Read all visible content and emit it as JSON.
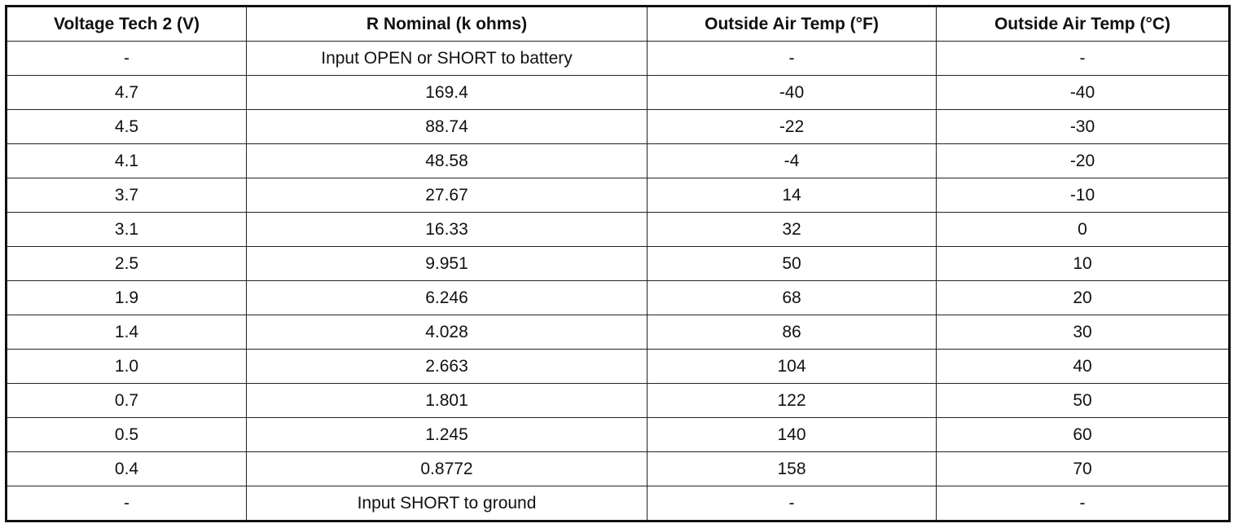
{
  "table": {
    "header": [
      "Voltage Tech 2 (V)",
      "R Nominal (k ohms)",
      "Outside Air Temp (°F)",
      "Outside Air Temp (°C)"
    ],
    "rows": [
      [
        "-",
        "Input OPEN or SHORT to battery",
        "-",
        "-"
      ],
      [
        "4.7",
        "169.4",
        "-40",
        "-40"
      ],
      [
        "4.5",
        "88.74",
        "-22",
        "-30"
      ],
      [
        "4.1",
        "48.58",
        "-4",
        "-20"
      ],
      [
        "3.7",
        "27.67",
        "14",
        "-10"
      ],
      [
        "3.1",
        "16.33",
        "32",
        "0"
      ],
      [
        "2.5",
        "9.951",
        "50",
        "10"
      ],
      [
        "1.9",
        "6.246",
        "68",
        "20"
      ],
      [
        "1.4",
        "4.028",
        "86",
        "30"
      ],
      [
        "1.0",
        "2.663",
        "104",
        "40"
      ],
      [
        "0.7",
        "1.801",
        "122",
        "50"
      ],
      [
        "0.5",
        "1.245",
        "140",
        "60"
      ],
      [
        "0.4",
        "0.8772",
        "158",
        "70"
      ],
      [
        "-",
        "Input SHORT to ground",
        "-",
        "-"
      ]
    ]
  }
}
